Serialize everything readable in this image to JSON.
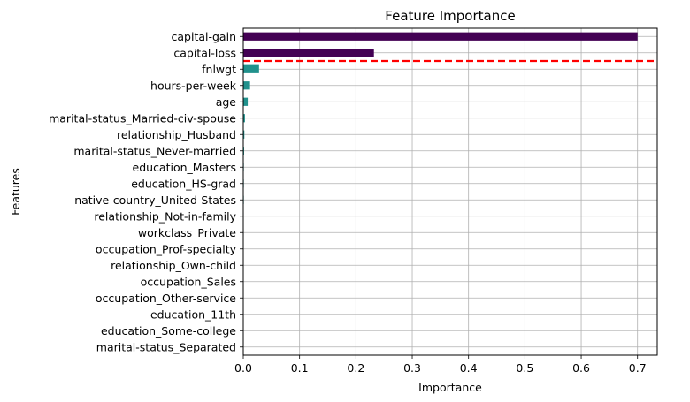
{
  "chart_data": {
    "type": "bar",
    "orientation": "horizontal",
    "title": "Feature Importance",
    "xlabel": "Importance",
    "ylabel": "Features",
    "xlim": [
      0,
      0.735
    ],
    "xticks": [
      "0.0",
      "0.1",
      "0.2",
      "0.3",
      "0.4",
      "0.5",
      "0.6",
      "0.7"
    ],
    "grid": true,
    "categories": [
      "capital-gain",
      "capital-loss",
      "fnlwgt",
      "hours-per-week",
      "age",
      "marital-status_Married-civ-spouse",
      "relationship_Husband",
      "marital-status_Never-married",
      "education_Masters",
      "education_HS-grad",
      "native-country_United-States",
      "relationship_Not-in-family",
      "workclass_Private",
      "occupation_Prof-specialty",
      "relationship_Own-child",
      "occupation_Sales",
      "occupation_Other-service",
      "education_11th",
      "education_Some-college",
      "marital-status_Separated"
    ],
    "values": [
      0.7,
      0.232,
      0.028,
      0.012,
      0.008,
      0.003,
      0.002,
      0.0015,
      0.001,
      0.001,
      0.001,
      0.0008,
      0.0008,
      0.0007,
      0.0006,
      0.0005,
      0.0005,
      0.0004,
      0.0004,
      0.0003
    ],
    "bar_colors": [
      "#440154",
      "#440154",
      "#21918c",
      "#21918c",
      "#21918c",
      "#21918c",
      "#21918c",
      "#21918c",
      "#21918c",
      "#21918c",
      "#21918c",
      "#21918c",
      "#21918c",
      "#21918c",
      "#21918c",
      "#21918c",
      "#21918c",
      "#21918c",
      "#21918c",
      "#21918c"
    ],
    "reference_line": {
      "between_categories": [
        "capital-loss",
        "fnlwgt"
      ],
      "color": "#ff0000",
      "style": "dashed"
    }
  }
}
